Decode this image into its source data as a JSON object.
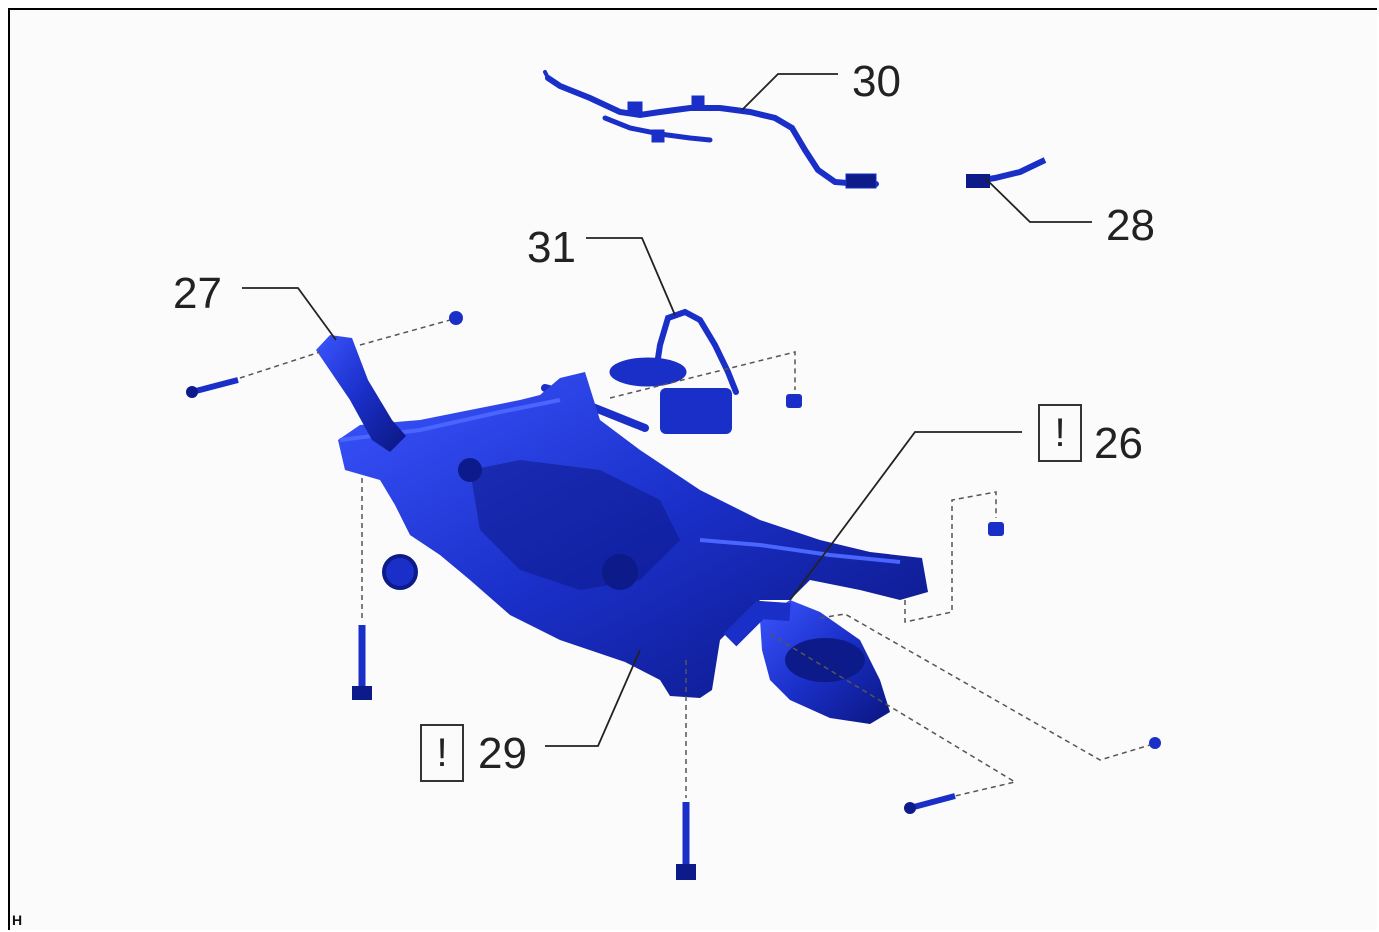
{
  "callouts": {
    "c26": "26",
    "c27": "27",
    "c28": "28",
    "c29": "29",
    "c30": "30",
    "c31": "31"
  },
  "warning_symbol": "!",
  "corner_code": "H",
  "colors": {
    "part_blue": "#1a2fc8",
    "part_dark": "#0c1a8a",
    "part_light": "#4a66ff",
    "leader_line": "#222222",
    "dashed_line": "#555555",
    "background": "#fbfbfb"
  }
}
